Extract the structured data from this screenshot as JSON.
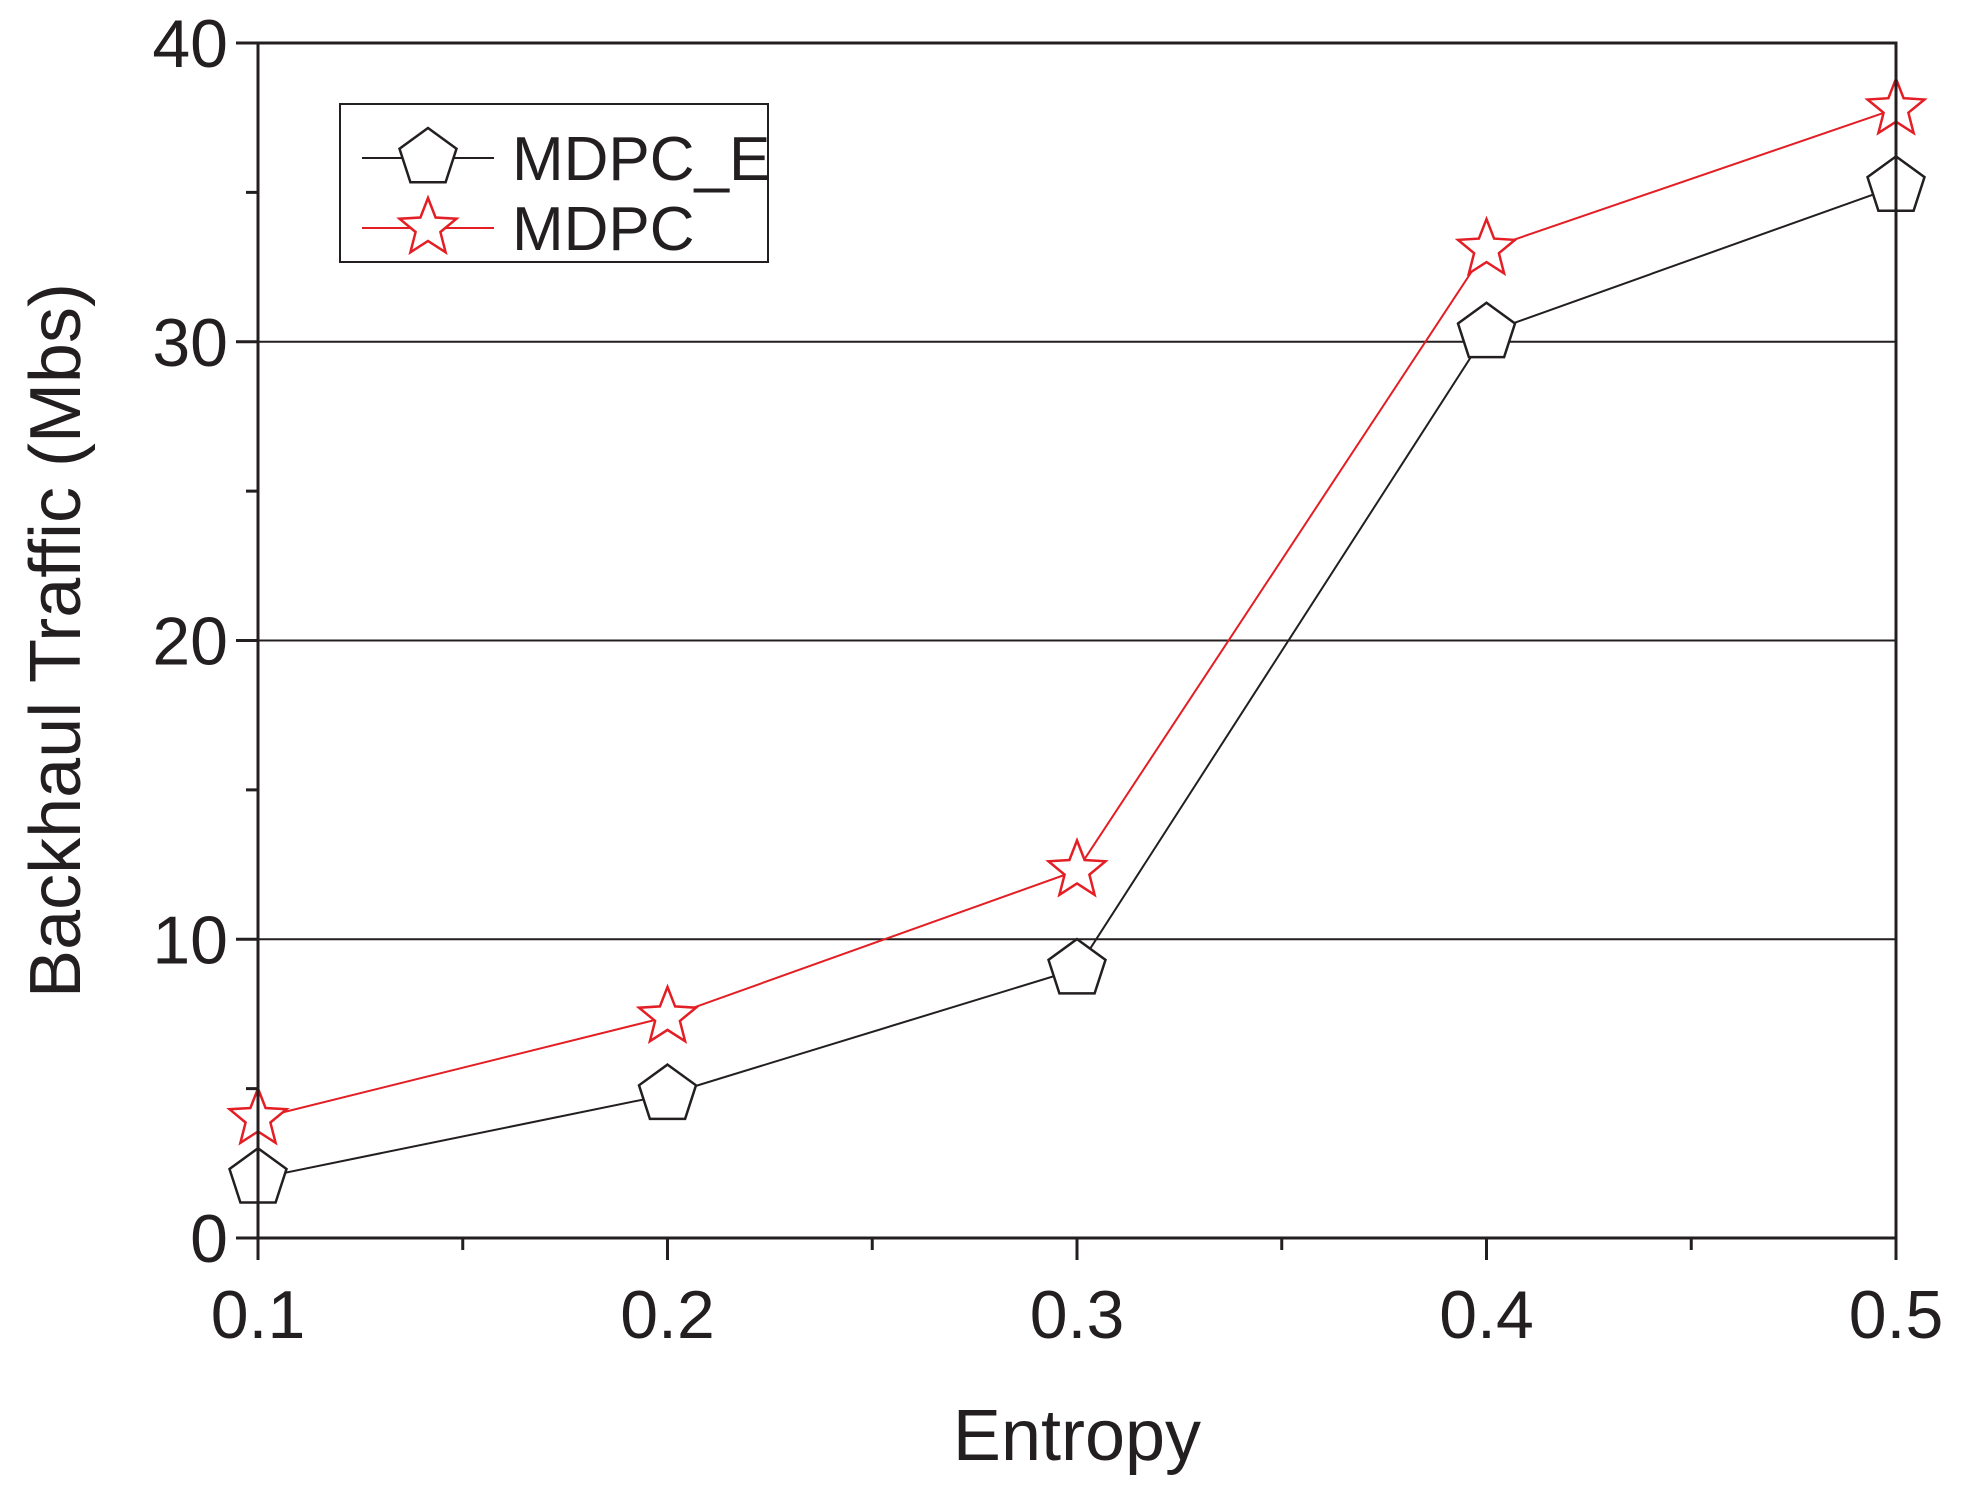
{
  "chart_data": {
    "type": "line",
    "title": "",
    "xlabel": "Entropy",
    "ylabel": "Backhaul Traffic (Mbs)",
    "x": [
      0.1,
      0.2,
      0.3,
      0.4,
      0.5
    ],
    "xlim": [
      0.1,
      0.5
    ],
    "ylim": [
      0,
      40
    ],
    "x_ticks": [
      "0.1",
      "0.2",
      "0.3",
      "0.4",
      "0.5"
    ],
    "y_ticks": [
      "0",
      "10",
      "20",
      "30",
      "40"
    ],
    "grid": "horizontal major lines at 10, 20, 30",
    "legend_position": "top-left",
    "series": [
      {
        "name": "MDPC_E",
        "marker": "pentagon",
        "color": "#231f20",
        "values": [
          2.0,
          4.8,
          9.0,
          30.3,
          35.2
        ]
      },
      {
        "name": "MDPC",
        "marker": "star",
        "color": "#e31e24",
        "values": [
          4.0,
          7.4,
          12.3,
          33.1,
          37.8
        ]
      }
    ]
  }
}
